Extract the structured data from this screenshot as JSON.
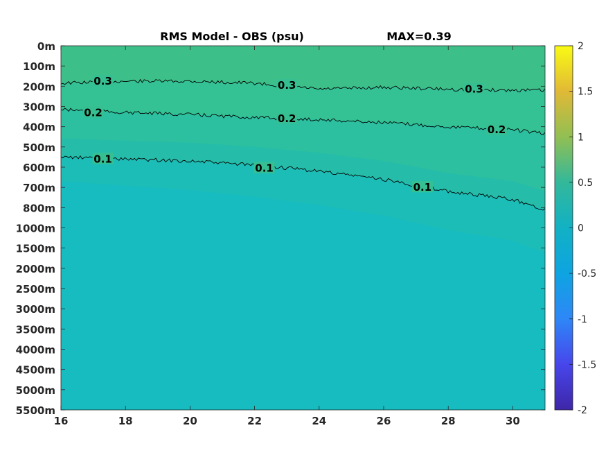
{
  "chart_data": {
    "type": "heatmap",
    "title": "RMS Model - OBS (psu)",
    "max_label": "MAX=0.39",
    "x_ticks": [
      "16",
      "18",
      "20",
      "22",
      "24",
      "26",
      "28",
      "30"
    ],
    "x_tick_values": [
      16,
      18,
      20,
      22,
      24,
      26,
      28,
      30
    ],
    "xlim": [
      16,
      31
    ],
    "y_tick_labels": [
      "0m",
      "100m",
      "200m",
      "300m",
      "400m",
      "500m",
      "600m",
      "700m",
      "800m",
      "1000m",
      "1500m",
      "2000m",
      "2500m",
      "3000m",
      "3500m",
      "4000m",
      "4500m",
      "5000m",
      "5500m"
    ],
    "colorbar": {
      "ticks": [
        "2",
        "1.5",
        "1",
        "0.5",
        "0",
        "-0.5",
        "-1",
        "-1.5",
        "-2"
      ],
      "tick_values": [
        2,
        1.5,
        1,
        0.5,
        0,
        -0.5,
        -1,
        -1.5,
        -2
      ],
      "range": [
        -2,
        2
      ],
      "colormap": "parula"
    },
    "contours": [
      {
        "level": "0.3",
        "x": [
          16,
          18,
          20,
          22,
          24,
          26,
          28,
          30,
          31
        ],
        "depth_index": [
          1.85,
          1.75,
          1.75,
          1.85,
          2.15,
          2.05,
          2.15,
          2.2,
          2.2
        ]
      },
      {
        "level": "0.2",
        "x": [
          16,
          18,
          20,
          22,
          24,
          26,
          28,
          30,
          31
        ],
        "depth_index": [
          3.15,
          3.3,
          3.4,
          3.55,
          3.65,
          3.8,
          4.0,
          4.15,
          4.35
        ]
      },
      {
        "level": "0.1",
        "x": [
          16,
          18,
          20,
          22,
          24,
          26,
          28,
          30,
          31
        ],
        "depth_index": [
          5.5,
          5.6,
          5.7,
          5.9,
          6.2,
          6.6,
          7.2,
          7.6,
          8.1
        ]
      }
    ],
    "contour_labels": [
      {
        "text": "0.3",
        "x": 17.3,
        "depth_index": 1.75
      },
      {
        "text": "0.3",
        "x": 23.0,
        "depth_index": 1.95
      },
      {
        "text": "0.3",
        "x": 28.8,
        "depth_index": 2.15
      },
      {
        "text": "0.2",
        "x": 17.0,
        "depth_index": 3.3
      },
      {
        "text": "0.2",
        "x": 23.0,
        "depth_index": 3.6
      },
      {
        "text": "0.2",
        "x": 29.5,
        "depth_index": 4.15
      },
      {
        "text": "0.1",
        "x": 17.3,
        "depth_index": 5.6
      },
      {
        "text": "0.1",
        "x": 22.3,
        "depth_index": 6.05
      },
      {
        "text": "0.1",
        "x": 27.2,
        "depth_index": 7.0
      }
    ],
    "colors": {
      "bands": [
        "#3dbf8a",
        "#34c295",
        "#2cbfa0",
        "#25bda9",
        "#1dbdb7",
        "#17bcc1"
      ],
      "contour_line": "#000000",
      "axis": "#262626"
    }
  }
}
